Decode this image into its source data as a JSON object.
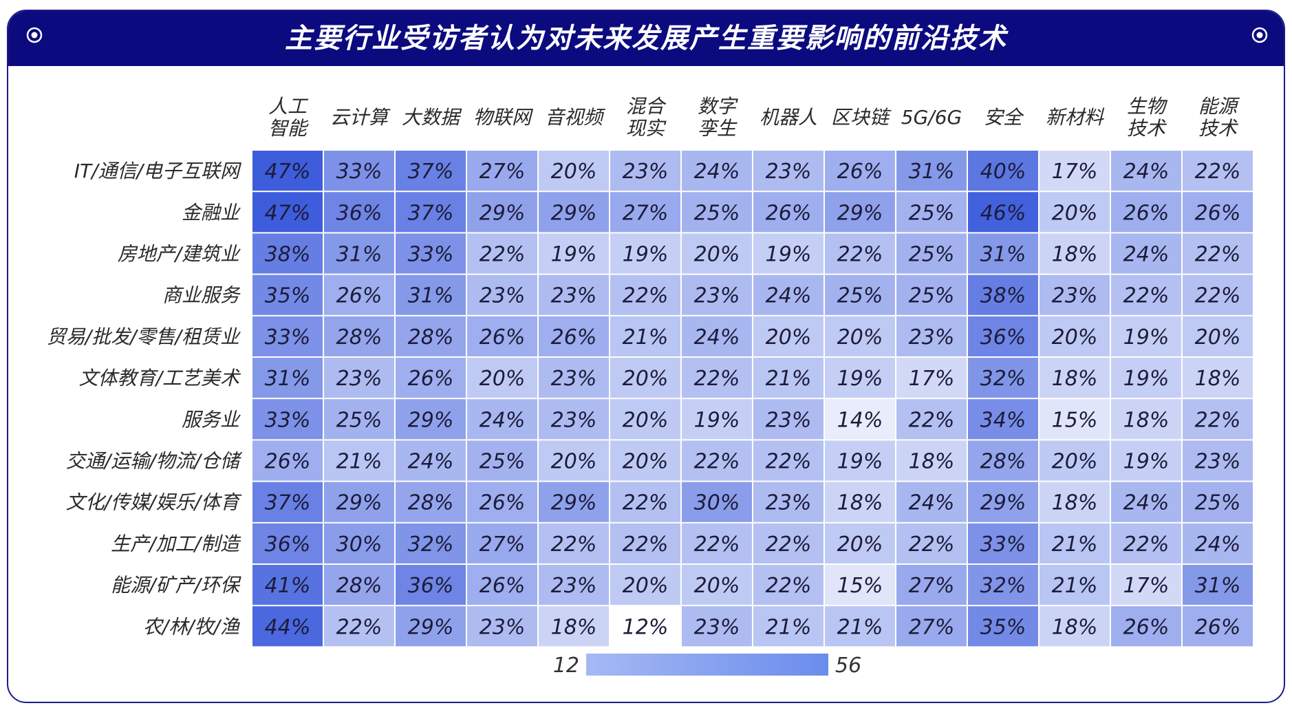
{
  "title": "主要行业受访者认为对未来发展产生重要影响的前沿技术",
  "colors": {
    "banner": "#0c0a7f",
    "border": "#1a1a8f",
    "low": "#ffffff",
    "high": "#1a3fd6"
  },
  "chart_data": {
    "type": "heatmap",
    "title": "主要行业受访者认为对未来发展产生重要影响的前沿技术",
    "columns": [
      [
        "人工",
        "智能"
      ],
      [
        "云计算"
      ],
      [
        "大数据"
      ],
      [
        "物联网"
      ],
      [
        "音视频"
      ],
      [
        "混合",
        "现实"
      ],
      [
        "数字",
        "孪生"
      ],
      [
        "机器人"
      ],
      [
        "区块链"
      ],
      [
        "5G/6G"
      ],
      [
        "安全"
      ],
      [
        "新材料"
      ],
      [
        "生物",
        "技术"
      ],
      [
        "能源",
        "技术"
      ]
    ],
    "rows": [
      "IT/通信/电子互联网",
      "金融业",
      "房地产/建筑业",
      "商业服务",
      "贸易/批发/零售/租赁业",
      "文体教育/工艺美术",
      "服务业",
      "交通/运输/物流/仓储",
      "文化/传媒/娱乐/体育",
      "生产/加工/制造",
      "能源/矿产/环保",
      "农/林/牧/渔"
    ],
    "values": [
      [
        47,
        33,
        37,
        27,
        20,
        23,
        24,
        23,
        26,
        31,
        40,
        17,
        24,
        22
      ],
      [
        47,
        36,
        37,
        29,
        29,
        27,
        25,
        26,
        29,
        25,
        46,
        20,
        26,
        26
      ],
      [
        38,
        31,
        33,
        22,
        19,
        19,
        20,
        19,
        22,
        25,
        31,
        18,
        24,
        22
      ],
      [
        35,
        26,
        31,
        23,
        23,
        22,
        23,
        24,
        25,
        25,
        38,
        23,
        22,
        22
      ],
      [
        33,
        28,
        28,
        26,
        26,
        21,
        24,
        20,
        20,
        23,
        36,
        20,
        19,
        20
      ],
      [
        31,
        23,
        26,
        20,
        23,
        20,
        22,
        21,
        19,
        17,
        32,
        18,
        19,
        18
      ],
      [
        33,
        25,
        29,
        24,
        23,
        20,
        19,
        23,
        14,
        22,
        34,
        15,
        18,
        22
      ],
      [
        26,
        21,
        24,
        25,
        20,
        20,
        22,
        22,
        19,
        18,
        28,
        20,
        19,
        23
      ],
      [
        37,
        29,
        28,
        26,
        29,
        22,
        30,
        23,
        18,
        24,
        29,
        18,
        24,
        25
      ],
      [
        36,
        30,
        32,
        27,
        22,
        22,
        22,
        22,
        20,
        22,
        33,
        21,
        22,
        24
      ],
      [
        41,
        28,
        36,
        26,
        23,
        20,
        20,
        22,
        15,
        27,
        32,
        21,
        17,
        31
      ],
      [
        44,
        22,
        29,
        23,
        18,
        12,
        23,
        21,
        21,
        27,
        35,
        18,
        26,
        26
      ]
    ],
    "unit": "%",
    "scale_min": 12,
    "scale_max": 56,
    "legend": {
      "min_label": "12",
      "max_label": "56",
      "placement": "bottom-center"
    }
  }
}
